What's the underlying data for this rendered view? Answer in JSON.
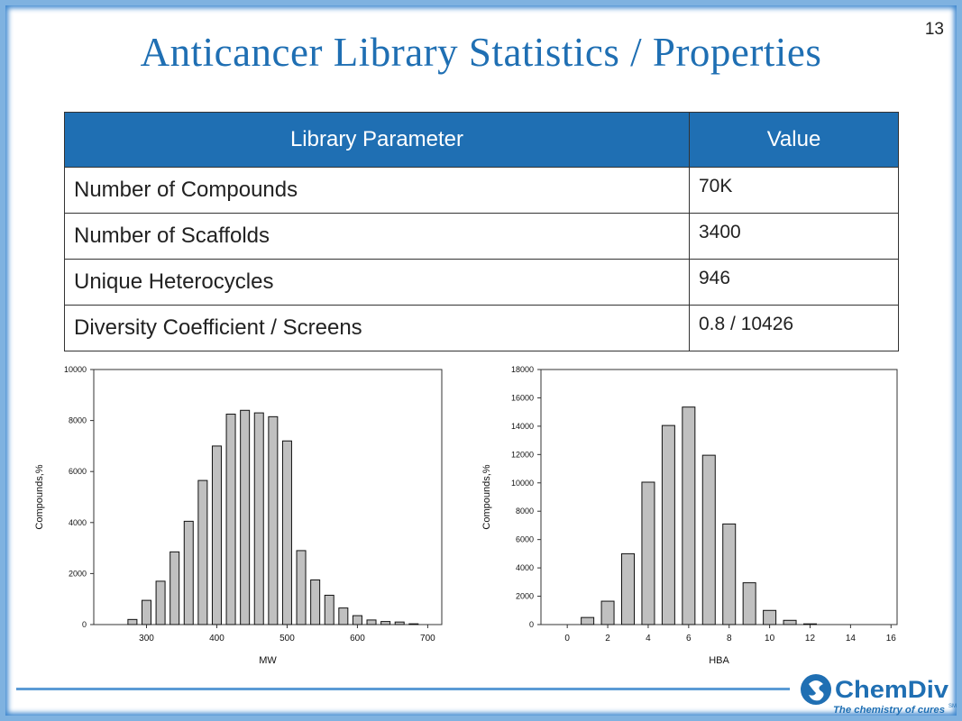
{
  "page_number": "13",
  "title": "Anticancer Library Statistics / Properties",
  "table": {
    "headers": [
      "Library Parameter",
      "Value"
    ],
    "rows": [
      [
        "Number of Compounds",
        "70K"
      ],
      [
        "Number  of Scaffolds",
        "3400"
      ],
      [
        "Unique Heterocycles",
        "946"
      ],
      [
        "Diversity Coefficient / Screens",
        "0.8 / 10426"
      ]
    ]
  },
  "chart_data": [
    {
      "type": "bar",
      "xlabel": "MW",
      "ylabel": "Compounds,%",
      "xlim": [
        225,
        720
      ],
      "ylim": [
        0,
        10000
      ],
      "xticks": [
        300,
        400,
        500,
        600,
        700
      ],
      "yticks": [
        0,
        2000,
        4000,
        6000,
        8000,
        10000
      ],
      "x": [
        280,
        300,
        320,
        340,
        360,
        380,
        400,
        420,
        440,
        460,
        480,
        500,
        520,
        540,
        560,
        580,
        600,
        620,
        640,
        660,
        680
      ],
      "values": [
        200,
        950,
        1700,
        2850,
        4050,
        5650,
        7000,
        8250,
        8400,
        8300,
        8150,
        7200,
        2900,
        1750,
        1150,
        650,
        350,
        180,
        120,
        100,
        30
      ],
      "bar_color": "#c0c0c0",
      "grid": false
    },
    {
      "type": "bar",
      "xlabel": "HBA",
      "ylabel": "Compounds,%",
      "xlim": [
        -1.3,
        16.3
      ],
      "ylim": [
        0,
        18000
      ],
      "xticks": [
        0,
        2,
        4,
        6,
        8,
        10,
        12,
        14,
        16
      ],
      "yticks": [
        0,
        2000,
        4000,
        6000,
        8000,
        10000,
        12000,
        14000,
        16000,
        18000
      ],
      "x": [
        1,
        2,
        3,
        4,
        5,
        6,
        7,
        8,
        9,
        10,
        11,
        12
      ],
      "values": [
        500,
        1650,
        5000,
        10050,
        14050,
        15350,
        11950,
        7100,
        2950,
        1000,
        300,
        50
      ],
      "bar_color": "#c0c0c0",
      "grid": false
    }
  ],
  "logo": {
    "name": "ChemDiv",
    "tagline": "The chemistry of cures",
    "mark": "SM"
  },
  "colors": {
    "accent": "#1f6fb3",
    "frame": "#7fb2e0"
  }
}
